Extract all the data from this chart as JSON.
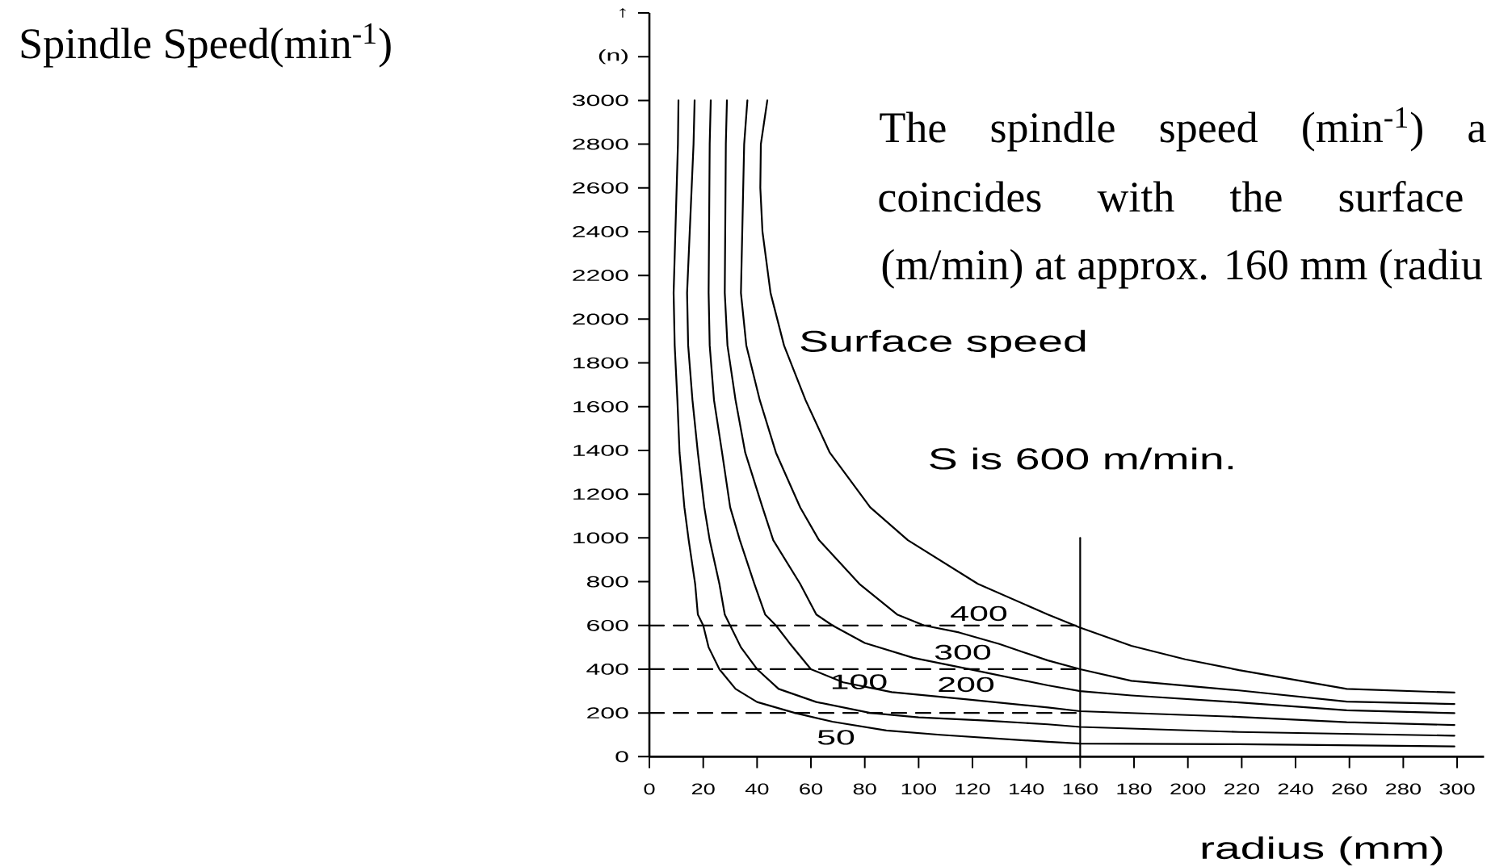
{
  "chart_data": {
    "type": "line",
    "ylabel": "Spindle Speed(min$^{-1}$)",
    "xlabel": "radius (mm)",
    "annotations": [
      "The spindle speed (min$^{-1}$) a",
      "coincides with the surface",
      "(m/min) at approx. 160 mm (radiu",
      "Surface speed",
      "S is 600 m/min.",
      "400",
      "300",
      "100",
      "200",
      "50"
    ],
    "xlim": [
      0,
      310
    ],
    "xticks": [
      0,
      20,
      40,
      60,
      80,
      100,
      120,
      140,
      160,
      180,
      200,
      220,
      240,
      260,
      280,
      300
    ],
    "ylim": [
      0,
      3400
    ],
    "yticks": [
      0,
      200,
      400,
      600,
      800,
      1000,
      1200,
      1400,
      1600,
      1800,
      2000,
      2200,
      2400,
      2600,
      2800,
      3000,
      {
        "value": 3200,
        "label": "(n)"
      },
      {
        "value": 3400,
        "label": "↑"
      }
    ],
    "line_style": "solid",
    "series": [
      {
        "color": "#000000",
        "x": [
          10.8,
          10.6,
          9,
          9.4,
          10.4,
          11.2,
          13,
          14.6,
          17,
          18,
          20,
          22,
          26,
          32,
          40,
          54,
          68,
          88,
          108,
          148,
          160,
          219,
          299
        ],
        "values": [
          3000,
          2800,
          2120,
          1880,
          1630,
          1390,
          1140,
          990,
          790,
          650,
          600,
          500,
          400,
          310,
          250,
          200,
          160,
          120,
          100,
          68,
          60,
          57,
          47
        ]
      },
      {
        "color": "#000000",
        "x": [
          16.8,
          16.4,
          14,
          14.4,
          16,
          18,
          20.4,
          22.4,
          26,
          28,
          30,
          34,
          40,
          48,
          62,
          82,
          100,
          125,
          148,
          160,
          219,
          299
        ],
        "values": [
          3000,
          2800,
          2120,
          1880,
          1630,
          1390,
          1140,
          990,
          790,
          650,
          600,
          500,
          400,
          310,
          250,
          200,
          180,
          165,
          148,
          136,
          113,
          96
        ]
      },
      {
        "color": "#000000",
        "x": [
          22.8,
          22.4,
          22,
          22.4,
          24,
          27,
          30,
          33.6,
          39,
          43,
          47,
          52,
          60,
          72,
          90,
          118,
          148,
          160,
          219,
          259,
          299
        ],
        "values": [
          3000,
          2800,
          2120,
          1880,
          1630,
          1390,
          1140,
          990,
          790,
          650,
          600,
          520,
          400,
          340,
          295,
          262,
          225,
          208,
          182,
          158,
          145
        ]
      },
      {
        "color": "#000000",
        "x": [
          28.8,
          28.4,
          28,
          29,
          32,
          35.6,
          42,
          46,
          56,
          62,
          68,
          80,
          98,
          118,
          148,
          160,
          179,
          219,
          259,
          299
        ],
        "values": [
          3000,
          2800,
          2120,
          1880,
          1630,
          1390,
          1140,
          990,
          790,
          650,
          600,
          520,
          452,
          402,
          326,
          300,
          280,
          248,
          212,
          199
        ]
      },
      {
        "color": "#000000",
        "x": [
          36.4,
          35.2,
          34,
          36,
          41,
          47,
          56,
          63,
          78,
          92,
          102,
          115,
          130,
          148,
          160,
          179,
          219,
          259,
          299
        ],
        "values": [
          3000,
          2800,
          2120,
          1880,
          1630,
          1390,
          1140,
          990,
          790,
          650,
          600,
          568,
          515,
          440,
          400,
          347,
          303,
          252,
          241
        ]
      },
      {
        "color": "#000000",
        "x": [
          43.8,
          41.4,
          41.2,
          42,
          45,
          50,
          58,
          67,
          82,
          96,
          122,
          148,
          160,
          179,
          199,
          219,
          259,
          299
        ],
        "values": [
          3000,
          2800,
          2600,
          2400,
          2120,
          1880,
          1630,
          1390,
          1140,
          990,
          790,
          650,
          590,
          507,
          445,
          396,
          310,
          293
        ]
      },
      {
        "color": "#000000",
        "line_style": "dashed",
        "x": [
          0,
          160
        ],
        "values": [
          600,
          600
        ]
      },
      {
        "color": "#000000",
        "line_style": "dashed",
        "x": [
          0,
          160
        ],
        "values": [
          400,
          400
        ]
      },
      {
        "color": "#000000",
        "line_style": "dashed",
        "x": [
          0,
          160
        ],
        "values": [
          200,
          200
        ]
      },
      {
        "color": "#000000",
        "x": [
          160,
          160
        ],
        "values": [
          0,
          1000
        ]
      }
    ]
  }
}
